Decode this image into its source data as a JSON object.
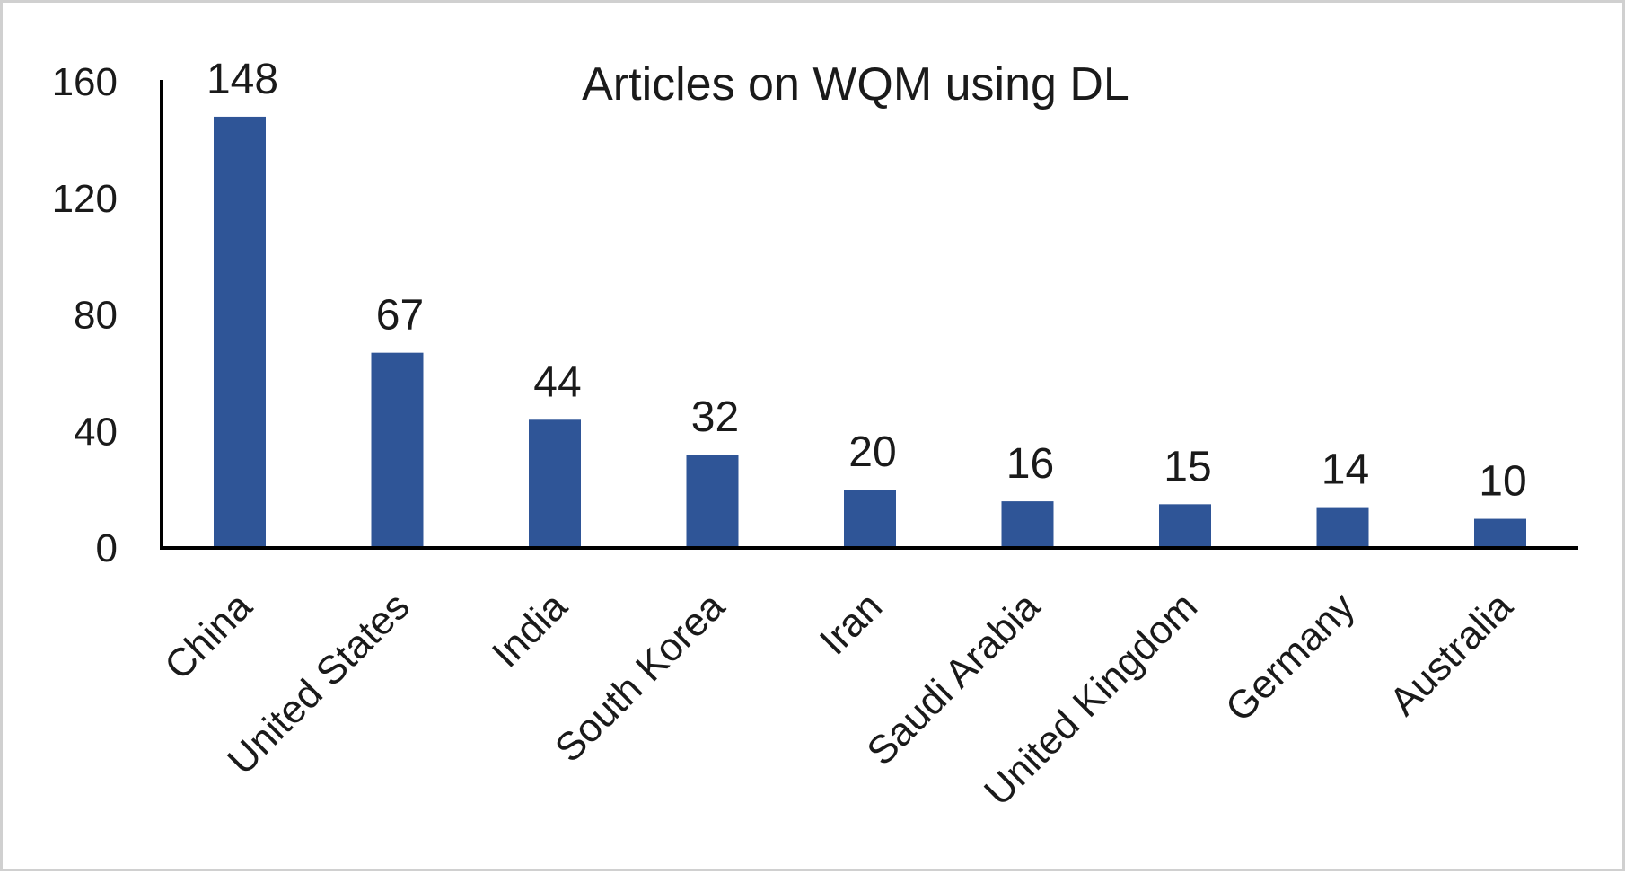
{
  "chart_data": {
    "type": "bar",
    "title": "Articles on WQM using DL",
    "categories": [
      "China",
      "United States",
      "India",
      "South Korea",
      "Iran",
      "Saudi Arabia",
      "United Kingdom",
      "Germany",
      "Australia"
    ],
    "values": [
      148,
      67,
      44,
      32,
      20,
      16,
      15,
      14,
      10
    ],
    "data_labels": [
      "148",
      "67",
      "44",
      "32",
      "20",
      "16",
      "15",
      "14",
      "10"
    ],
    "yticks": [
      0,
      40,
      80,
      120,
      160
    ],
    "ytick_labels": [
      "0",
      "40",
      "80",
      "120",
      "160"
    ],
    "ylim": [
      0,
      160
    ],
    "xlabel": "",
    "ylabel": "",
    "bar_color": "#2f5597",
    "axis_color": "#000000",
    "grid": false,
    "legend": "none"
  }
}
